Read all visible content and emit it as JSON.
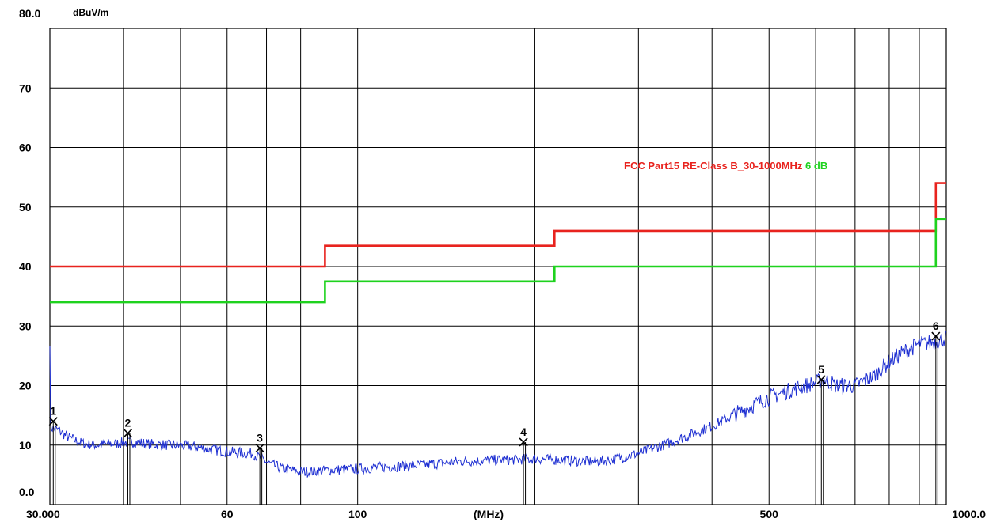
{
  "chart_data": {
    "type": "line",
    "ylabel": "dBuV/m",
    "xlabel": "(MHz)",
    "xscale": "log",
    "xlim": [
      30,
      1000
    ],
    "ylim": [
      0,
      80
    ],
    "grid": true,
    "y_tick_labels": [
      {
        "value": 0,
        "label": "0.0"
      },
      {
        "value": 10,
        "label": "10"
      },
      {
        "value": 20,
        "label": "20"
      },
      {
        "value": 30,
        "label": "30"
      },
      {
        "value": 40,
        "label": "40"
      },
      {
        "value": 50,
        "label": "50"
      },
      {
        "value": 60,
        "label": "60"
      },
      {
        "value": 70,
        "label": "70"
      },
      {
        "value": 80,
        "label": "80.0"
      }
    ],
    "x_tick_labels": [
      {
        "value": 30,
        "label": "30.000"
      },
      {
        "value": 60,
        "label": "60"
      },
      {
        "value": 100,
        "label": "100"
      },
      {
        "value": 500,
        "label": "500"
      },
      {
        "value": 1000,
        "label": "1000.0"
      }
    ],
    "x_grid": [
      30,
      40,
      50,
      60,
      70,
      80,
      100,
      200,
      300,
      400,
      500,
      600,
      700,
      800,
      900,
      1000
    ],
    "limit_lines": [
      {
        "name": "FCC Part15 RE-Class B_30-1000MHz",
        "color": "#e8231e",
        "x": [
          30,
          88,
          88,
          216,
          216,
          960,
          960,
          1000
        ],
        "y": [
          40,
          40,
          43.5,
          43.5,
          46,
          46,
          54,
          54
        ]
      },
      {
        "name": "6 dB",
        "color": "#1ed21e",
        "x": [
          30,
          88,
          88,
          216,
          216,
          960,
          960,
          1000
        ],
        "y": [
          34,
          34,
          37.5,
          37.5,
          40,
          40,
          48,
          48
        ]
      }
    ],
    "legend_text": [
      {
        "text": "FCC Part15 RE-Class B_30-1000MHz",
        "color": "#e8231e"
      },
      {
        "text": "6 dB",
        "color": "#1ed21e"
      }
    ],
    "trace": {
      "color": "#1e2fd2",
      "x": [
        30,
        31,
        32,
        34,
        36,
        38,
        40,
        42,
        44,
        48,
        52,
        56,
        60,
        63,
        66,
        68,
        71,
        75,
        80,
        85,
        90,
        100,
        110,
        120,
        130,
        140,
        150,
        160,
        170,
        180,
        190,
        200,
        210,
        230,
        250,
        270,
        300,
        330,
        360,
        400,
        450,
        500,
        550,
        600,
        620,
        650,
        700,
        750,
        800,
        850,
        900,
        950,
        1000
      ],
      "y": [
        13,
        12.5,
        11.5,
        10.3,
        10,
        10.2,
        10.4,
        10.5,
        10.2,
        10,
        9.8,
        9.3,
        8.9,
        8.7,
        8.6,
        8,
        6.8,
        6,
        5.5,
        5.6,
        5.8,
        6,
        6.3,
        6.5,
        6.7,
        7,
        7.3,
        7.3,
        7.5,
        7.5,
        7.6,
        7.7,
        7.6,
        7.4,
        7.2,
        7.5,
        8.6,
        10,
        11.4,
        13.2,
        15.8,
        18,
        19.4,
        20.5,
        21,
        20,
        20,
        21.5,
        24,
        25.8,
        27,
        27.3,
        28
      ]
    },
    "markers": [
      {
        "label": "1",
        "x": 30.4,
        "y": 14
      },
      {
        "label": "2",
        "x": 40.7,
        "y": 12
      },
      {
        "label": "3",
        "x": 68.2,
        "y": 9.5
      },
      {
        "label": "4",
        "x": 191.3,
        "y": 10.5
      },
      {
        "label": "5",
        "x": 613.5,
        "y": 21
      },
      {
        "label": "6",
        "x": 960,
        "y": 28.3
      }
    ]
  }
}
